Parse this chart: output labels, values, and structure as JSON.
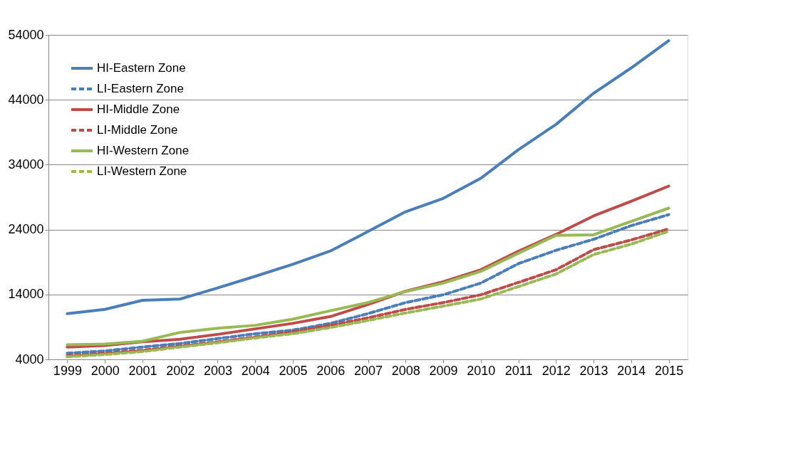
{
  "chart_data": {
    "type": "line",
    "categories": [
      "1999",
      "2000",
      "2001",
      "2002",
      "2003",
      "2004",
      "2005",
      "2006",
      "2007",
      "2008",
      "2009",
      "2010",
      "2011",
      "2012",
      "2013",
      "2014",
      "2015"
    ],
    "ylim": [
      4000,
      54000
    ],
    "yticks": [
      4000,
      14000,
      24000,
      34000,
      44000,
      54000
    ],
    "grid": "y",
    "legend": "top left",
    "marker": "none",
    "series": [
      {
        "name": "HI-Eastern Zone",
        "color": "#4a7ebb",
        "line_style": "solid",
        "values": [
          11050,
          11700,
          13100,
          13300,
          15000,
          16800,
          18650,
          20700,
          23700,
          26750,
          28800,
          31900,
          36300,
          40200,
          45000,
          48900,
          53100
        ]
      },
      {
        "name": "LI-Eastern Zone",
        "color": "#4a7ebb",
        "line_style": "dashed",
        "values": [
          4950,
          5300,
          5900,
          6450,
          7200,
          7950,
          8500,
          9550,
          11050,
          12750,
          13950,
          15750,
          18750,
          20800,
          22500,
          24600,
          26300
        ]
      },
      {
        "name": "HI-Middle Zone",
        "color": "#be4b48",
        "line_style": "solid",
        "values": [
          5900,
          6150,
          6700,
          7100,
          7850,
          8700,
          9550,
          10600,
          12450,
          14500,
          15950,
          17800,
          20650,
          23250,
          26100,
          28350,
          30700
        ]
      },
      {
        "name": "LI-Middle Zone",
        "color": "#be4b48",
        "line_style": "dashed",
        "values": [
          4550,
          4950,
          5400,
          6050,
          6700,
          7450,
          8250,
          9250,
          10400,
          11700,
          12750,
          13950,
          15850,
          17800,
          20900,
          22400,
          24100
        ]
      },
      {
        "name": "HI-Western Zone",
        "color": "#98b954",
        "line_style": "solid",
        "values": [
          6250,
          6350,
          6800,
          8150,
          8800,
          9250,
          10200,
          11500,
          12750,
          14450,
          15750,
          17550,
          20350,
          23100,
          23200,
          25250,
          27300
        ]
      },
      {
        "name": "LI-Western Zone",
        "color": "#98b954",
        "line_style": "dashed",
        "values": [
          4400,
          4750,
          5200,
          5900,
          6550,
          7300,
          7950,
          8900,
          10000,
          11150,
          12200,
          13300,
          15200,
          17150,
          20150,
          21750,
          23750
        ]
      }
    ]
  }
}
